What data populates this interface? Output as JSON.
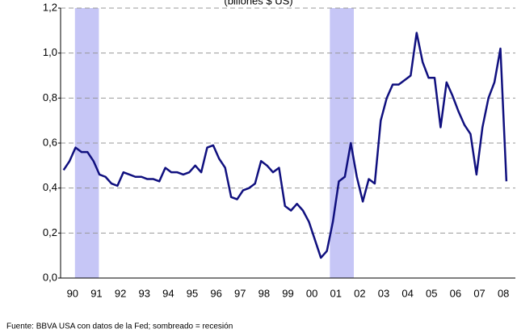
{
  "chart_data": {
    "type": "line",
    "subtitle": "(billones $ US)",
    "source": "Fuente: BBVA USA con datos de la Fed; sombreado = recesión",
    "x": [
      1990.125,
      1990.375,
      1990.625,
      1990.875,
      1991.125,
      1991.375,
      1991.625,
      1991.875,
      1992.125,
      1992.375,
      1992.625,
      1992.875,
      1993.125,
      1993.375,
      1993.625,
      1993.875,
      1994.125,
      1994.375,
      1994.625,
      1994.875,
      1995.125,
      1995.375,
      1995.625,
      1995.875,
      1996.125,
      1996.375,
      1996.625,
      1996.875,
      1997.125,
      1997.375,
      1997.625,
      1997.875,
      1998.125,
      1998.375,
      1998.625,
      1998.875,
      1999.125,
      1999.375,
      1999.625,
      1999.875,
      2000.125,
      2000.375,
      2000.625,
      2000.875,
      2001.125,
      2001.375,
      2001.625,
      2001.875,
      2002.125,
      2002.375,
      2002.625,
      2002.875,
      2003.125,
      2003.375,
      2003.625,
      2003.875,
      2004.125,
      2004.375,
      2004.625,
      2004.875,
      2005.125,
      2005.375,
      2005.625,
      2005.875,
      2006.125,
      2006.375,
      2006.625,
      2006.875,
      2007.125,
      2007.375,
      2007.625,
      2007.875,
      2008.125,
      2008.375,
      2008.625
    ],
    "series": [
      {
        "color": "#10107f",
        "values": [
          0.48,
          0.52,
          0.58,
          0.56,
          0.56,
          0.52,
          0.46,
          0.45,
          0.42,
          0.41,
          0.47,
          0.46,
          0.45,
          0.45,
          0.44,
          0.44,
          0.43,
          0.49,
          0.47,
          0.47,
          0.46,
          0.47,
          0.5,
          0.47,
          0.58,
          0.59,
          0.53,
          0.49,
          0.36,
          0.35,
          0.39,
          0.4,
          0.42,
          0.52,
          0.5,
          0.47,
          0.49,
          0.32,
          0.3,
          0.33,
          0.3,
          0.25,
          0.17,
          0.09,
          0.12,
          0.25,
          0.43,
          0.45,
          0.6,
          0.45,
          0.34,
          0.44,
          0.42,
          0.7,
          0.8,
          0.86,
          0.86,
          0.88,
          0.9,
          1.09,
          0.96,
          0.89,
          0.89,
          0.67,
          0.87,
          0.81,
          0.74,
          0.68,
          0.64,
          0.46,
          0.67,
          0.8,
          0.87,
          1.02,
          0.43
        ]
      }
    ],
    "recessions": [
      [
        1990.6,
        1991.6
      ],
      [
        2001.25,
        2002.25
      ]
    ],
    "recession_color": "#c6c6f6",
    "xlim": [
      1990,
      2009
    ],
    "xticks": [
      {
        "value": 1990.5,
        "label": "90"
      },
      {
        "value": 1991.5,
        "label": "91"
      },
      {
        "value": 1992.5,
        "label": "92"
      },
      {
        "value": 1993.5,
        "label": "93"
      },
      {
        "value": 1994.5,
        "label": "94"
      },
      {
        "value": 1995.5,
        "label": "95"
      },
      {
        "value": 1996.5,
        "label": "96"
      },
      {
        "value": 1997.5,
        "label": "97"
      },
      {
        "value": 1998.5,
        "label": "98"
      },
      {
        "value": 1999.5,
        "label": "99"
      },
      {
        "value": 2000.5,
        "label": "00"
      },
      {
        "value": 2001.5,
        "label": "01"
      },
      {
        "value": 2002.5,
        "label": "02"
      },
      {
        "value": 2003.5,
        "label": "03"
      },
      {
        "value": 2004.5,
        "label": "04"
      },
      {
        "value": 2005.5,
        "label": "05"
      },
      {
        "value": 2006.5,
        "label": "06"
      },
      {
        "value": 2007.5,
        "label": "07"
      },
      {
        "value": 2008.5,
        "label": "08"
      }
    ],
    "ylim": [
      0,
      1.2
    ],
    "yticks": [
      {
        "value": 0,
        "label": "0,0"
      },
      {
        "value": 0.2,
        "label": "0,2"
      },
      {
        "value": 0.4,
        "label": "0,4"
      },
      {
        "value": 0.6,
        "label": "0,6"
      },
      {
        "value": 0.8,
        "label": "0,8"
      },
      {
        "value": 1.0,
        "label": "1,0"
      },
      {
        "value": 1.2,
        "label": "1,2"
      }
    ],
    "grid": true
  }
}
